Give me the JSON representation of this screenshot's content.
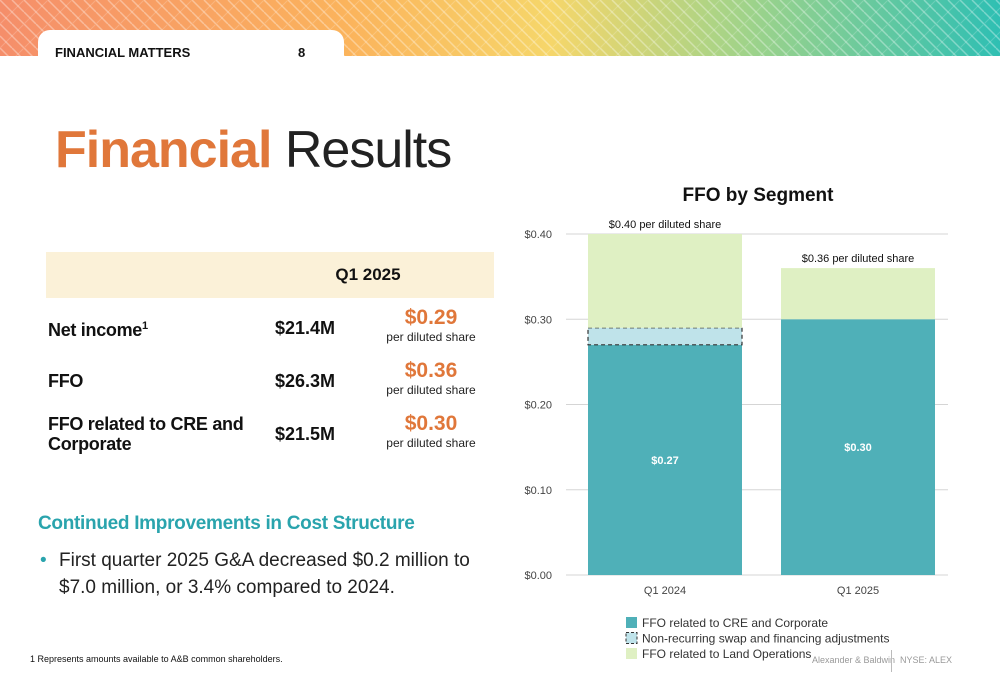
{
  "header": {
    "section": "FINANCIAL MATTERS",
    "page_number": "8"
  },
  "title": {
    "accent": "Financial",
    "rest": "Results"
  },
  "results_table": {
    "column_header": "Q1 2025",
    "rows": [
      {
        "label": "Net income",
        "footnote_ref": "1",
        "total": "$21.4M",
        "per_share": "$0.29",
        "per_share_note": "per diluted share"
      },
      {
        "label": "FFO",
        "footnote_ref": "",
        "total": "$26.3M",
        "per_share": "$0.36",
        "per_share_note": "per diluted share"
      },
      {
        "label_line1": "FFO related to CRE and",
        "label_line2": "Corporate",
        "total": "$21.5M",
        "per_share": "$0.30",
        "per_share_note": "per diluted share"
      }
    ]
  },
  "cost_section": {
    "heading": "Continued Improvements in Cost Structure",
    "bullet": "First quarter 2025 G&A decreased $0.2 million to $7.0 million, or 3.4% compared to 2024."
  },
  "footnote": "1 Represents amounts available to A&B common shareholders.",
  "footer": {
    "brand": "Alexander & Baldwin",
    "ticker": "NYSE: ALEX"
  },
  "colors": {
    "accent_orange": "#e0773a",
    "teal": "#2aa4ad",
    "cre_bar": "#4fb0b8",
    "swap_bar": "#bfe3ea",
    "land_bar": "#dff0c3"
  },
  "chart_data": {
    "type": "bar",
    "stacked": true,
    "title": "FFO by Segment",
    "categories": [
      "Q1 2024",
      "Q1 2025"
    ],
    "ylim": [
      0,
      0.4
    ],
    "yticks": [
      "$0.00",
      "$0.10",
      "$0.20",
      "$0.30",
      "$0.40"
    ],
    "grid": true,
    "legend_position": "bottom",
    "series": [
      {
        "name": "FFO related to CRE and Corporate",
        "values": [
          0.27,
          0.3
        ],
        "color": "#4fb0b8",
        "labels": [
          "$0.27",
          "$0.30"
        ]
      },
      {
        "name": "Non-recurring swap and financing adjustments",
        "values": [
          0.02,
          0.0
        ],
        "color": "#bfe3ea",
        "dashed": true
      },
      {
        "name": "FFO related to Land Operations",
        "values": [
          0.11,
          0.06
        ],
        "color": "#dff0c3"
      }
    ],
    "total_labels": [
      "$0.40 per diluted share",
      "$0.36 per diluted share"
    ]
  }
}
